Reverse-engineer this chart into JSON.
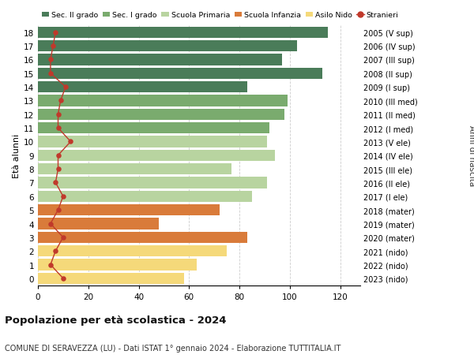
{
  "ages": [
    18,
    17,
    16,
    15,
    14,
    13,
    12,
    11,
    10,
    9,
    8,
    7,
    6,
    5,
    4,
    3,
    2,
    1,
    0
  ],
  "right_labels": [
    "2005 (V sup)",
    "2006 (IV sup)",
    "2007 (III sup)",
    "2008 (II sup)",
    "2009 (I sup)",
    "2010 (III med)",
    "2011 (II med)",
    "2012 (I med)",
    "2013 (V ele)",
    "2014 (IV ele)",
    "2015 (III ele)",
    "2016 (II ele)",
    "2017 (I ele)",
    "2018 (mater)",
    "2019 (mater)",
    "2020 (mater)",
    "2021 (nido)",
    "2022 (nido)",
    "2023 (nido)"
  ],
  "bar_values": [
    115,
    103,
    97,
    113,
    83,
    99,
    98,
    92,
    91,
    94,
    77,
    91,
    85,
    72,
    48,
    83,
    75,
    63,
    58
  ],
  "stranieri": [
    7,
    6,
    5,
    5,
    11,
    9,
    8,
    8,
    13,
    8,
    8,
    7,
    10,
    8,
    5,
    10,
    7,
    5,
    10
  ],
  "bar_colors": [
    "#4a7c59",
    "#4a7c59",
    "#4a7c59",
    "#4a7c59",
    "#4a7c59",
    "#7aab6e",
    "#7aab6e",
    "#7aab6e",
    "#b8d4a0",
    "#b8d4a0",
    "#b8d4a0",
    "#b8d4a0",
    "#b8d4a0",
    "#d97b3a",
    "#d97b3a",
    "#d97b3a",
    "#f5d97a",
    "#f5d97a",
    "#f5d97a"
  ],
  "legend_labels": [
    "Sec. II grado",
    "Sec. I grado",
    "Scuola Primaria",
    "Scuola Infanzia",
    "Asilo Nido",
    "Stranieri"
  ],
  "legend_colors": [
    "#4a7c59",
    "#7aab6e",
    "#b8d4a0",
    "#d97b3a",
    "#f5d97a",
    "#c0392b"
  ],
  "stranieri_color": "#c0392b",
  "title": "Popolazione per età scolastica - 2024",
  "subtitle": "COMUNE DI SERAVEZZA (LU) - Dati ISTAT 1° gennaio 2024 - Elaborazione TUTTITALIA.IT",
  "ylabel_left": "Età alunni",
  "ylabel_right": "Anni di nascita",
  "xlim": [
    0,
    128
  ],
  "xticks": [
    0,
    20,
    40,
    60,
    80,
    100,
    120
  ],
  "bg_color": "#ffffff",
  "grid_color": "#cccccc"
}
